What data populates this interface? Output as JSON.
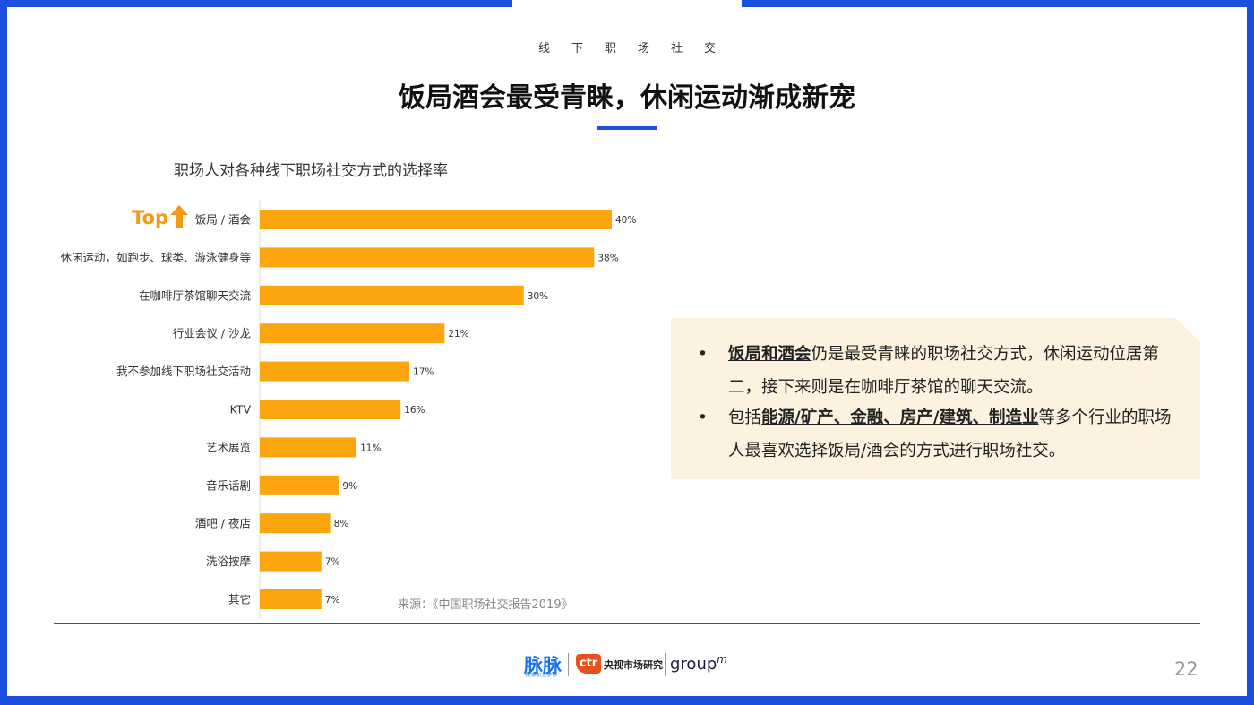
{
  "header": {
    "section_label": "线下职场社交",
    "title": "饭局酒会最受青睐，休闲运动渐成新宠"
  },
  "chart_data": {
    "type": "bar",
    "orientation": "horizontal",
    "title": "职场人对各种线下职场社交方式的选择率",
    "top_badge": "Top",
    "categories": [
      "饭局 / 酒会",
      "休闲运动，如跑步、球类、游泳健身等",
      "在咖啡厅茶馆聊天交流",
      "行业会议 / 沙龙",
      "我不参加线下职场社交活动",
      "KTV",
      "艺术展览",
      "音乐话剧",
      "酒吧 / 夜店",
      "洗浴按摩",
      "其它"
    ],
    "values": [
      40,
      38,
      30,
      21,
      17,
      16,
      11,
      9,
      8,
      7,
      7
    ],
    "value_labels": [
      "40%",
      "38%",
      "30%",
      "21%",
      "17%",
      "16%",
      "11%",
      "9%",
      "8%",
      "7%",
      "7%"
    ],
    "xlim": [
      0,
      40
    ],
    "bar_color": "#fca50f",
    "grid": false,
    "legend": "none"
  },
  "source": "来源：《中国职场社交报告2019》",
  "notes": {
    "items": [
      {
        "bullet": "•",
        "highlight": "饭局和酒会",
        "text": "仍是最受青睐的职场社交方式，休闲运动位居第二，接下来则是在咖啡厅茶馆的聊天交流。"
      },
      {
        "bullet": "•",
        "prefix": "包括",
        "highlight": "能源/矿产、金融、房产/建筑、制造业",
        "text": "等多个行业的职场人最喜欢选择饭局/酒会的方式进行职场社交。"
      }
    ]
  },
  "footer": {
    "logo_maimai": "脉脉",
    "logo_maimai_sub": "成就职业梦想",
    "logo_ctr": "ctr",
    "logo_ctr_text": "央视市场研究",
    "logo_groupm": "group",
    "logo_groupm_suffix": "m",
    "page_number": "22"
  },
  "colors": {
    "accent_blue": "#1a4fe0",
    "bar_orange": "#fca50f",
    "top_orange": "#f59a12",
    "note_bg": "#fdf2df"
  }
}
